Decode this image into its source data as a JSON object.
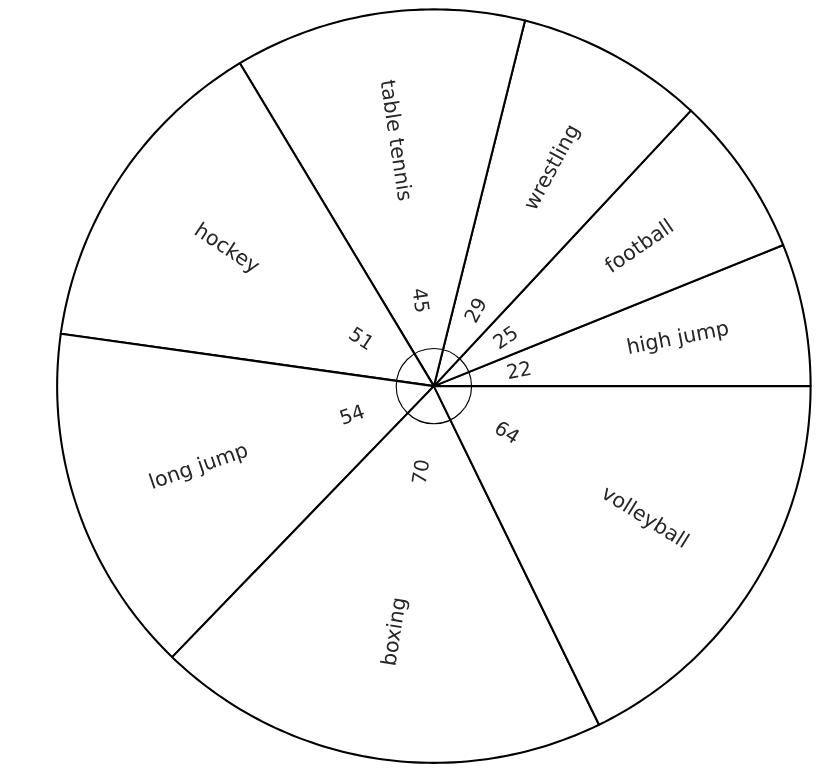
{
  "chart_data": {
    "type": "pie",
    "categories": [
      "high jump",
      "football",
      "wrestling",
      "table tennis",
      "hockey",
      "long jump",
      "boxing",
      "volleyball"
    ],
    "values": [
      22,
      25,
      29,
      45,
      51,
      54,
      70,
      64
    ],
    "colors": [
      "#ffffff",
      "#ffffff",
      "#ffffff",
      "#ffffff",
      "#ffffff",
      "#ffffff",
      "#ffffff",
      "#ffffff"
    ],
    "data_labels": true
  }
}
